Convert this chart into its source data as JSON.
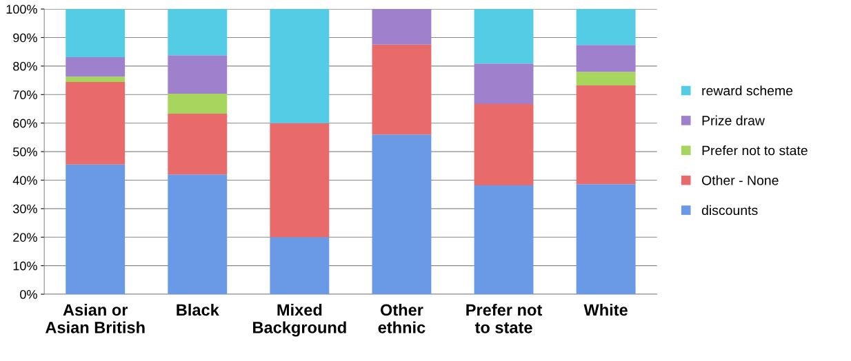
{
  "chart_data": {
    "type": "bar",
    "stacked": true,
    "categories": [
      "Asian or\nAsian British",
      "Black",
      "Mixed\nBackground",
      "Other\nethnic",
      "Prefer not\nto state",
      "White"
    ],
    "series": [
      {
        "name": "discounts",
        "color": "#6a9ae6",
        "values": [
          45.5,
          42,
          20,
          56,
          38.2,
          38.6
        ]
      },
      {
        "name": "Other - None",
        "color": "#e86a6a",
        "values": [
          28.9,
          21.3,
          40,
          31.5,
          28.5,
          34.6
        ]
      },
      {
        "name": "Prefer not to state",
        "color": "#a6d65e",
        "values": [
          1.9,
          7,
          0,
          0,
          0,
          4.8
        ]
      },
      {
        "name": "Prize draw",
        "color": "#9e80cc",
        "values": [
          6.8,
          13.5,
          0,
          12.5,
          14.2,
          9.4
        ]
      },
      {
        "name": "reward scheme",
        "color": "#55cce6",
        "values": [
          16.9,
          16.2,
          40,
          0,
          19.1,
          12.6
        ]
      }
    ],
    "ylim": [
      0,
      100
    ],
    "yticks": [
      {
        "value": 0,
        "label": "0%"
      },
      {
        "value": 10,
        "label": "10%"
      },
      {
        "value": 20,
        "label": "20%"
      },
      {
        "value": 30,
        "label": "30%"
      },
      {
        "value": 40,
        "label": "40%"
      },
      {
        "value": 50,
        "label": "50%"
      },
      {
        "value": 60,
        "label": "60%"
      },
      {
        "value": 70,
        "label": "70%"
      },
      {
        "value": 80,
        "label": "80%"
      },
      {
        "value": 90,
        "label": "90%"
      },
      {
        "value": 100,
        "label": "100%"
      }
    ],
    "grid": "y",
    "legend": "right"
  }
}
